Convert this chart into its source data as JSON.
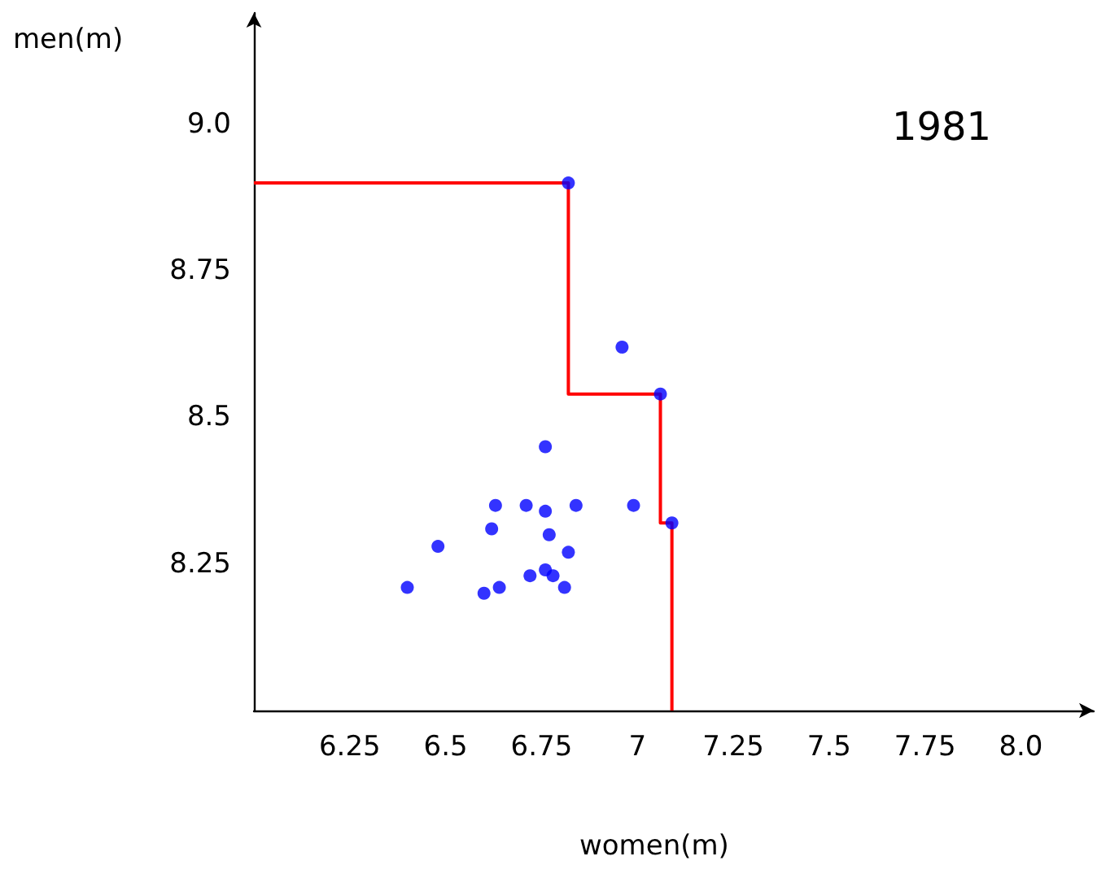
{
  "chart_data": {
    "type": "scatter",
    "xlabel": "women(m)",
    "ylabel": "men(m)",
    "annotations": [
      "1981"
    ],
    "xlim": [
      6,
      8.19
    ],
    "ylim": [
      8,
      9.19
    ],
    "xticks": [
      6.25,
      6.5,
      6.75,
      7,
      7.25,
      7.5,
      7.75,
      {
        "value": 8,
        "label": "8.0"
      }
    ],
    "yticks": [
      8.25,
      8.5,
      8.75,
      {
        "value": 9,
        "label": "9.0"
      }
    ],
    "grid": false,
    "series": [
      {
        "type": "line",
        "color": "#ff0000",
        "line_style": "solid",
        "marker": "none",
        "x": [
          6.0,
          6.82,
          6.82,
          7.06,
          7.06,
          7.09,
          7.09
        ],
        "values": [
          8.9,
          8.9,
          8.54,
          8.54,
          8.32,
          8.32,
          8.0
        ]
      },
      {
        "color": "#0000ff",
        "marker": "circle",
        "x": [
          6.82,
          6.96,
          7.06,
          6.76,
          7.09,
          6.99,
          6.84,
          6.71,
          6.63,
          6.76,
          6.62,
          6.77,
          6.48,
          6.82,
          6.72,
          6.76,
          6.78,
          6.64,
          6.6,
          6.4,
          6.81
        ],
        "values": [
          8.9,
          8.62,
          8.54,
          8.45,
          8.32,
          8.35,
          8.35,
          8.35,
          8.35,
          8.34,
          8.31,
          8.3,
          8.28,
          8.27,
          8.23,
          8.24,
          8.23,
          8.21,
          8.2,
          8.21,
          8.21
        ]
      }
    ]
  }
}
